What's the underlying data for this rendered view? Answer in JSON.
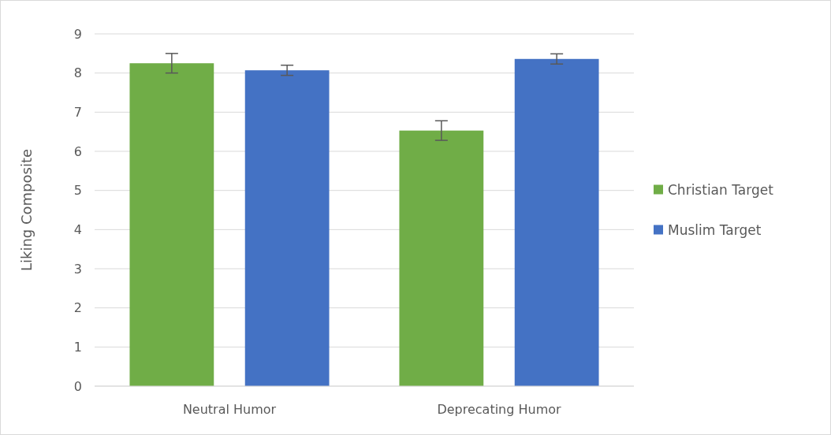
{
  "chart_data": {
    "type": "bar",
    "ylabel": "Liking Composite",
    "categories": [
      "Neutral Humor",
      "Deprecating Humor"
    ],
    "series": [
      {
        "name": "Christian Target",
        "color": "#70ad47",
        "values": [
          8.25,
          6.53
        ],
        "errors": [
          0.25,
          0.25
        ]
      },
      {
        "name": "Muslim Target",
        "color": "#4472c4",
        "values": [
          8.07,
          8.36
        ],
        "errors": [
          0.13,
          0.13
        ]
      }
    ],
    "ylim": [
      0,
      9
    ],
    "yticks": [
      0,
      1,
      2,
      3,
      4,
      5,
      6,
      7,
      8,
      9
    ],
    "grid": "y",
    "legend": "right"
  }
}
